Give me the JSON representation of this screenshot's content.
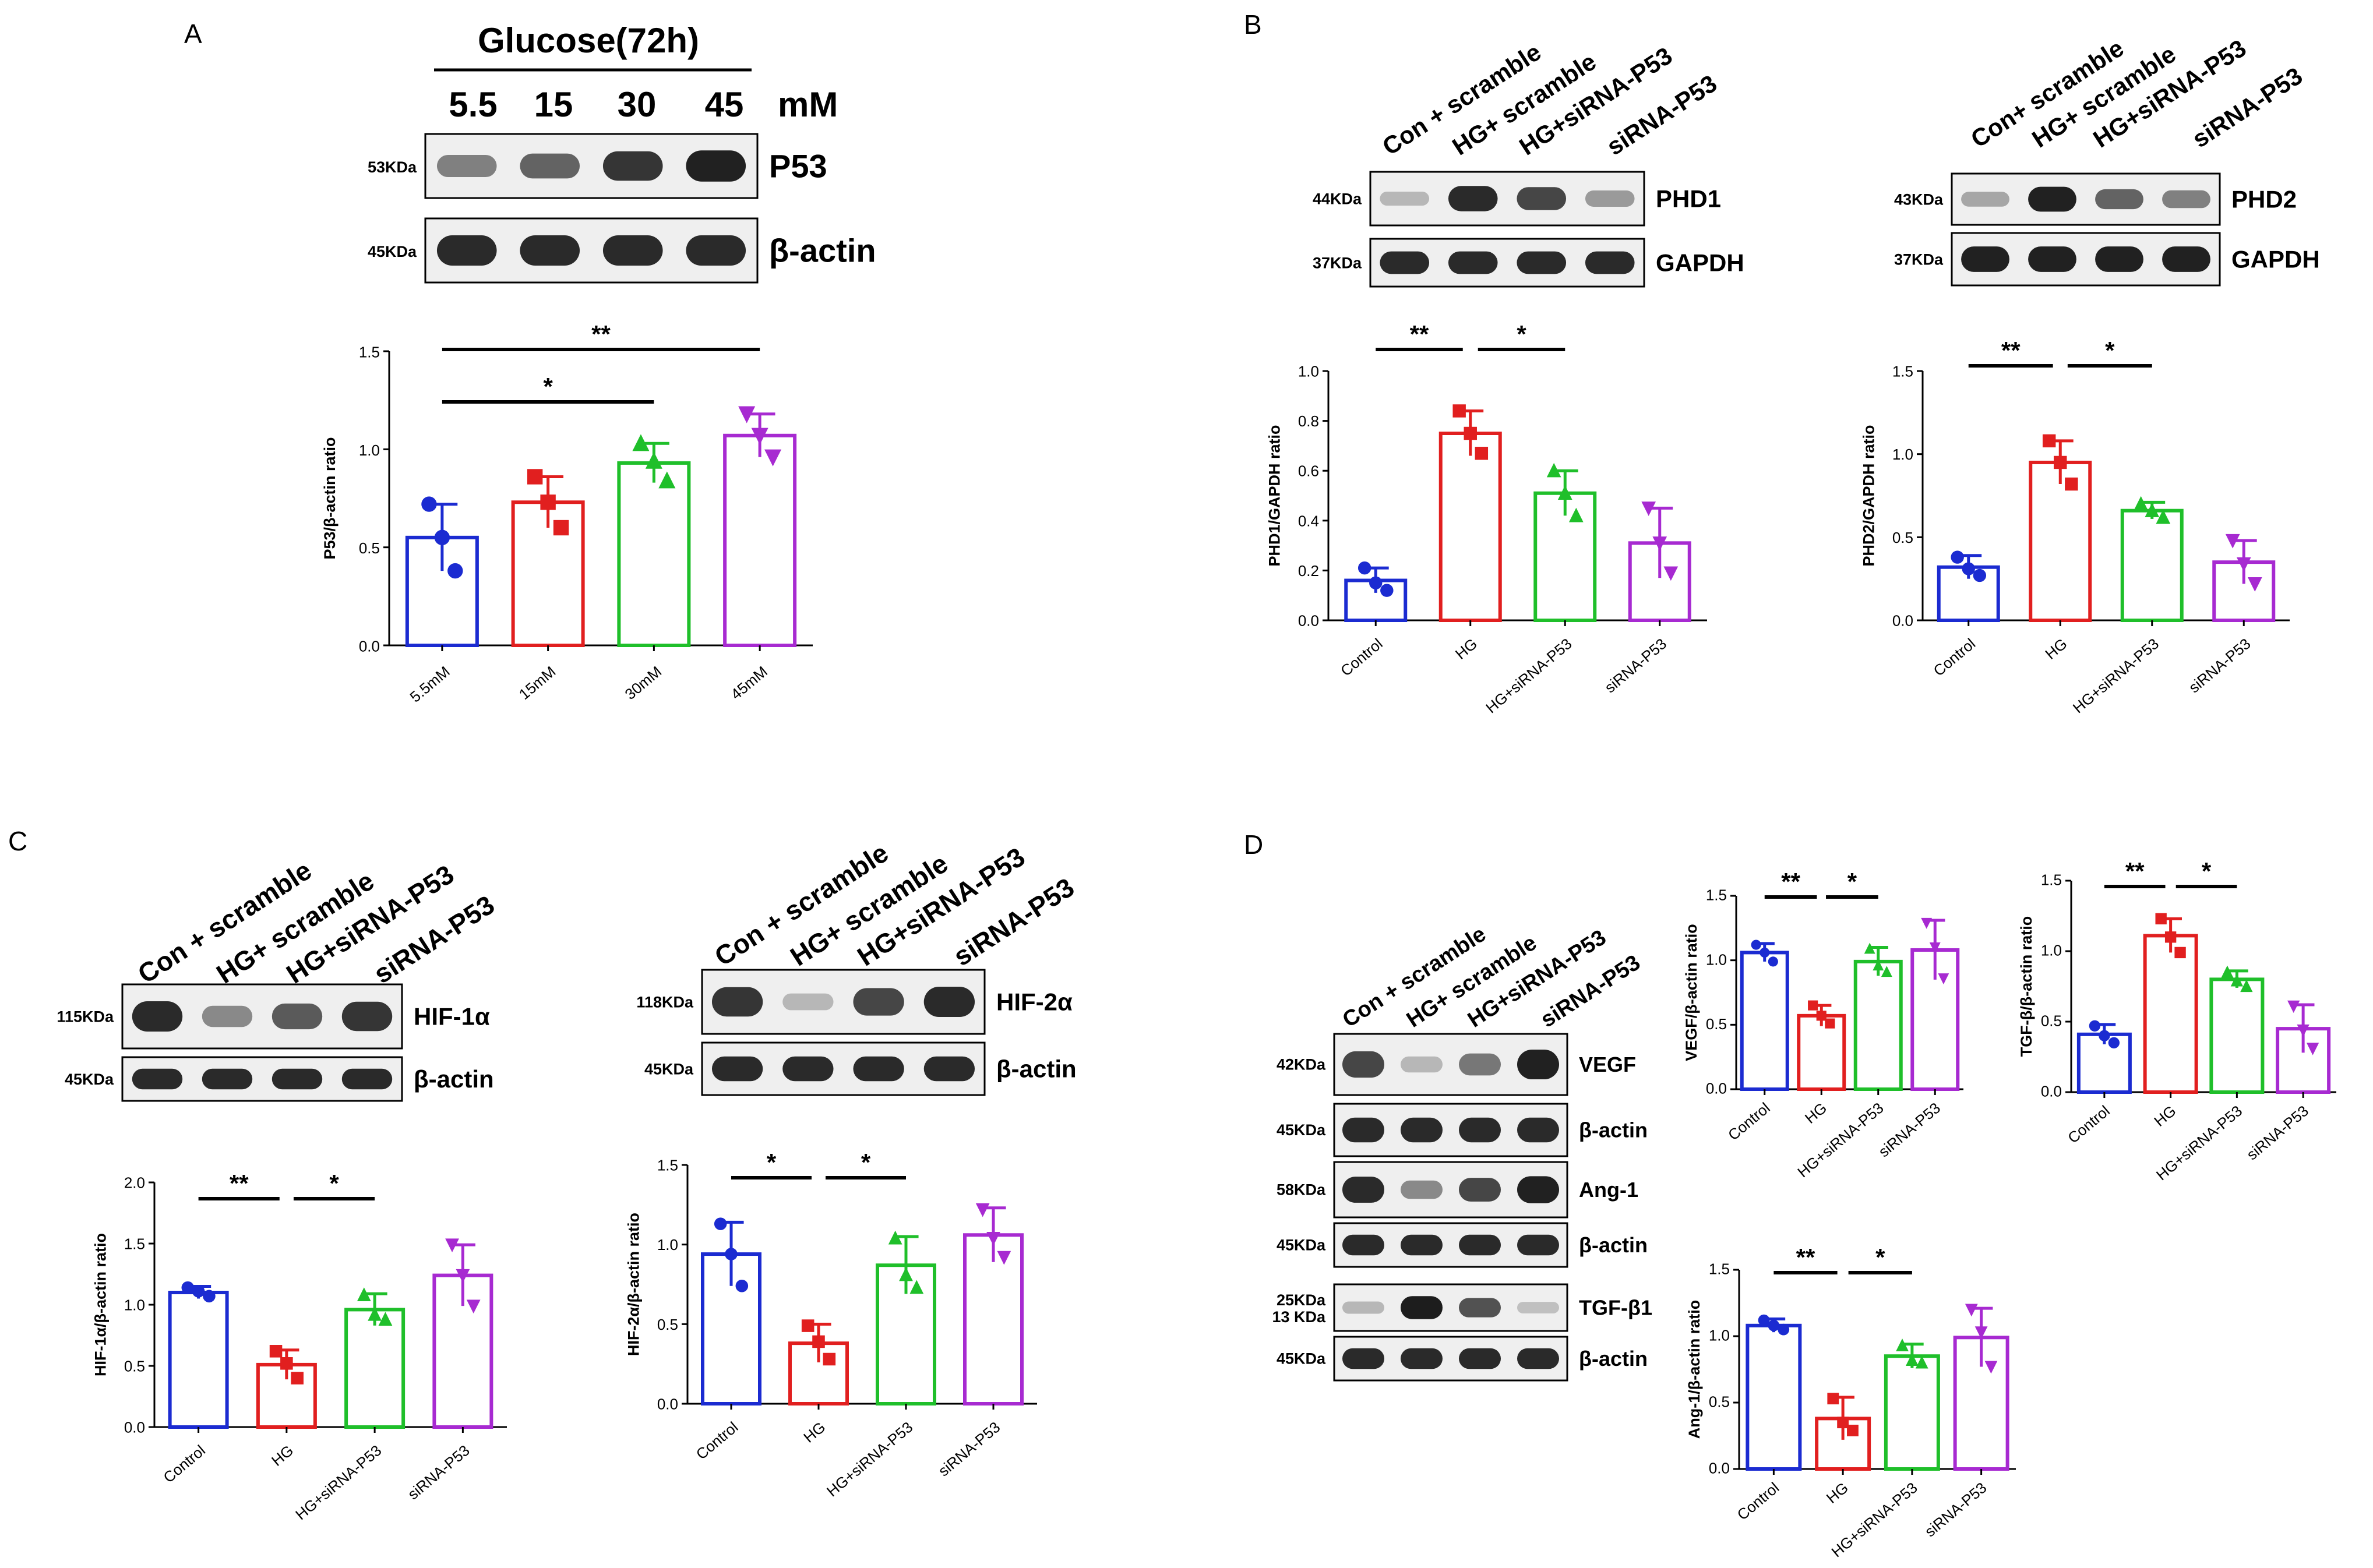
{
  "colors": {
    "Control": "#1b2bd1",
    "HG": "#e11f1f",
    "HG+siRNA-P53": "#1fbf2a",
    "siRNA-P53": "#a72ad1",
    "5.5mM": "#1b2bd1",
    "15mM": "#e11f1f",
    "30mM": "#1fbf2a",
    "45mM": "#a72ad1",
    "ink": "#000000"
  },
  "panels": {
    "A": {
      "letter": "A",
      "treatment": "Glucose(72h)",
      "concentrations": [
        "5.5",
        "15",
        "30",
        "45"
      ],
      "unit": "mM"
    },
    "B": {
      "letter": "B"
    },
    "C": {
      "letter": "C"
    },
    "D": {
      "letter": "D"
    }
  },
  "lanes": {
    "group_labels": [
      "Con + scramble",
      "HG+ scramble",
      "HG+siRNA-P53",
      "siRNA-P53"
    ],
    "B_phd1": [
      "Con + scramble",
      "HG+ scramble",
      "HG+siRNA-P53",
      "siRNA-P53"
    ],
    "B_phd2": [
      "Con+ scramble",
      "HG+ scramble",
      "HG+siRNA-P53",
      "siRNA-P53"
    ],
    "C_hif2": [
      "Con + scramble",
      "HG+ scramble",
      "HG+siRNA-P53",
      "siRNA-P53"
    ],
    "D": [
      "Con + scramble",
      "HG+ scramble",
      "HG+siRNA-P53",
      "siRNA-P53"
    ]
  },
  "blots": {
    "A": [
      {
        "label": "P53",
        "kda": "53KDa",
        "bands": [
          0.45,
          0.6,
          0.85,
          0.95
        ]
      },
      {
        "label": "β-actin",
        "kda": "45KDa",
        "bands": [
          0.9,
          0.9,
          0.9,
          0.9
        ]
      }
    ],
    "B1": [
      {
        "label": "PHD1",
        "kda": "44KDa",
        "bands": [
          0.15,
          0.9,
          0.75,
          0.3
        ]
      },
      {
        "label": "GAPDH",
        "kda": "37KDa",
        "bands": [
          0.9,
          0.9,
          0.9,
          0.9
        ]
      }
    ],
    "B2": [
      {
        "label": "PHD2",
        "kda": "43KDa",
        "bands": [
          0.25,
          0.95,
          0.6,
          0.45
        ]
      },
      {
        "label": "GAPDH",
        "kda": "37KDa",
        "bands": [
          0.95,
          0.95,
          0.95,
          0.95
        ]
      }
    ],
    "C1": [
      {
        "label": "HIF-1α",
        "kda": "115KDa",
        "bands": [
          0.9,
          0.4,
          0.65,
          0.85
        ]
      },
      {
        "label": "β-actin",
        "kda": "45KDa",
        "bands": [
          0.9,
          0.9,
          0.9,
          0.9
        ]
      }
    ],
    "C2": [
      {
        "label": "HIF-2α",
        "kda": "118KDa",
        "bands": [
          0.85,
          0.15,
          0.75,
          0.9
        ]
      },
      {
        "label": "β-actin",
        "kda": "45KDa",
        "bands": [
          0.9,
          0.9,
          0.9,
          0.9
        ]
      }
    ],
    "D": [
      {
        "label": "VEGF",
        "kda": "42KDa",
        "bands": [
          0.75,
          0.15,
          0.5,
          0.95
        ]
      },
      {
        "label": "β-actin",
        "kda": "45KDa",
        "bands": [
          0.9,
          0.9,
          0.9,
          0.9
        ]
      },
      {
        "label": "Ang-1",
        "kda": "58KDa",
        "bands": [
          0.9,
          0.4,
          0.75,
          0.95
        ]
      },
      {
        "label": "β-actin",
        "kda": "45KDa",
        "bands": [
          0.9,
          0.9,
          0.9,
          0.9
        ]
      },
      {
        "label": "TGF-β1",
        "kda": "25KDa",
        "kda2": "13 KDa",
        "bands": [
          0.15,
          0.98,
          0.7,
          0.1
        ]
      },
      {
        "label": "β-actin",
        "kda": "45KDa",
        "bands": [
          0.9,
          0.9,
          0.9,
          0.9
        ]
      }
    ]
  },
  "chart_data": [
    {
      "id": "A",
      "type": "bar",
      "title": "",
      "ylabel": "P53/β-actin ratio",
      "ylim": [
        0,
        1.5
      ],
      "yticks": [
        "0.0",
        "0.5",
        "1.0",
        "1.5"
      ],
      "categories": [
        "5.5mM",
        "15mM",
        "30mM",
        "45mM"
      ],
      "values": [
        0.55,
        0.73,
        0.93,
        1.07
      ],
      "errors": [
        0.17,
        0.13,
        0.1,
        0.11
      ],
      "points": [
        [
          0.72,
          0.55,
          0.38
        ],
        [
          0.86,
          0.73,
          0.6
        ],
        [
          1.03,
          0.94,
          0.84
        ],
        [
          1.18,
          1.07,
          0.96
        ]
      ],
      "markers": [
        "circle",
        "square",
        "triangle",
        "triangle-down"
      ],
      "significance": [
        {
          "from": 0,
          "to": 2,
          "label": "*"
        },
        {
          "from": 0,
          "to": 3,
          "label": "**"
        }
      ]
    },
    {
      "id": "B1",
      "type": "bar",
      "title": "",
      "ylabel": "PHD1/GAPDH ratio",
      "ylim": [
        0,
        1.0
      ],
      "yticks": [
        "0.0",
        "0.2",
        "0.4",
        "0.6",
        "0.8",
        "1.0"
      ],
      "categories": [
        "Control",
        "HG",
        "HG+siRNA-P53",
        "siRNA-P53"
      ],
      "values": [
        0.16,
        0.75,
        0.51,
        0.31
      ],
      "errors": [
        0.05,
        0.09,
        0.09,
        0.14
      ],
      "points": [
        [
          0.21,
          0.15,
          0.12
        ],
        [
          0.84,
          0.75,
          0.67
        ],
        [
          0.6,
          0.51,
          0.42
        ],
        [
          0.45,
          0.31,
          0.19
        ]
      ],
      "markers": [
        "circle",
        "square",
        "triangle",
        "triangle-down"
      ],
      "significance": [
        {
          "from": 0,
          "to": 1,
          "label": "**"
        },
        {
          "from": 1,
          "to": 2,
          "label": "*"
        }
      ]
    },
    {
      "id": "B2",
      "type": "bar",
      "title": "",
      "ylabel": "PHD2/GAPDH ratio",
      "ylim": [
        0,
        1.5
      ],
      "yticks": [
        "0.0",
        "0.5",
        "1.0",
        "1.5"
      ],
      "categories": [
        "Control",
        "HG",
        "HG+siRNA-P53",
        "siRNA-P53"
      ],
      "values": [
        0.32,
        0.95,
        0.66,
        0.35
      ],
      "errors": [
        0.07,
        0.13,
        0.05,
        0.13
      ],
      "points": [
        [
          0.38,
          0.31,
          0.27
        ],
        [
          1.08,
          0.95,
          0.82
        ],
        [
          0.7,
          0.66,
          0.62
        ],
        [
          0.48,
          0.34,
          0.22
        ]
      ],
      "markers": [
        "circle",
        "square",
        "triangle",
        "triangle-down"
      ],
      "significance": [
        {
          "from": 0,
          "to": 1,
          "label": "**"
        },
        {
          "from": 1,
          "to": 2,
          "label": "*"
        }
      ]
    },
    {
      "id": "C1",
      "type": "bar",
      "title": "",
      "ylabel": "HIF-1α/β-actin ratio",
      "ylim": [
        0,
        2.0
      ],
      "yticks": [
        "0.0",
        "0.5",
        "1.0",
        "1.5",
        "2.0"
      ],
      "categories": [
        "Control",
        "HG",
        "HG+siRNA-P53",
        "siRNA-P53"
      ],
      "values": [
        1.1,
        0.51,
        0.96,
        1.24
      ],
      "errors": [
        0.05,
        0.12,
        0.13,
        0.25
      ],
      "points": [
        [
          1.14,
          1.11,
          1.07
        ],
        [
          0.62,
          0.52,
          0.4
        ],
        [
          1.08,
          0.92,
          0.88
        ],
        [
          1.49,
          1.24,
          0.99
        ]
      ],
      "markers": [
        "circle",
        "square",
        "triangle",
        "triangle-down"
      ],
      "significance": [
        {
          "from": 0,
          "to": 1,
          "label": "**"
        },
        {
          "from": 1,
          "to": 2,
          "label": "*"
        }
      ]
    },
    {
      "id": "C2",
      "type": "bar",
      "title": "",
      "ylabel": "HIF-2α/β-actin ratio",
      "ylim": [
        0,
        1.5
      ],
      "yticks": [
        "0.0",
        "0.5",
        "1.0",
        "1.5"
      ],
      "categories": [
        "Control",
        "HG",
        "HG+siRNA-P53",
        "siRNA-P53"
      ],
      "values": [
        0.94,
        0.38,
        0.87,
        1.06
      ],
      "errors": [
        0.2,
        0.12,
        0.18,
        0.17
      ],
      "points": [
        [
          1.13,
          0.94,
          0.74
        ],
        [
          0.49,
          0.39,
          0.28
        ],
        [
          1.04,
          0.81,
          0.73
        ],
        [
          1.22,
          1.04,
          0.92
        ]
      ],
      "markers": [
        "circle",
        "square",
        "triangle",
        "triangle-down"
      ],
      "significance": [
        {
          "from": 0,
          "to": 1,
          "label": "*"
        },
        {
          "from": 1,
          "to": 2,
          "label": "*"
        }
      ]
    },
    {
      "id": "D_vegf",
      "type": "bar",
      "title": "",
      "ylabel": "VEGF/β-actin ratio",
      "ylim": [
        0,
        1.5
      ],
      "yticks": [
        "0.0",
        "0.5",
        "1.0",
        "1.5"
      ],
      "categories": [
        "Control",
        "HG",
        "HG+siRNA-P53",
        "siRNA-P53"
      ],
      "values": [
        1.06,
        0.57,
        0.99,
        1.08
      ],
      "errors": [
        0.07,
        0.08,
        0.11,
        0.23
      ],
      "points": [
        [
          1.12,
          1.06,
          0.99
        ],
        [
          0.65,
          0.57,
          0.51
        ],
        [
          1.09,
          0.96,
          0.91
        ],
        [
          1.29,
          1.1,
          0.86
        ]
      ],
      "markers": [
        "circle",
        "square",
        "triangle",
        "triangle-down"
      ],
      "significance": [
        {
          "from": 0,
          "to": 1,
          "label": "**"
        },
        {
          "from": 1,
          "to": 2,
          "label": "*"
        }
      ]
    },
    {
      "id": "D_tgf",
      "type": "bar",
      "title": "",
      "ylabel": "TGF-β/β-actin ratio",
      "ylim": [
        0,
        1.5
      ],
      "yticks": [
        "0.0",
        "0.5",
        "1.0",
        "1.5"
      ],
      "categories": [
        "Control",
        "HG",
        "HG+siRNA-P53",
        "siRNA-P53"
      ],
      "values": [
        0.41,
        1.11,
        0.8,
        0.45
      ],
      "errors": [
        0.07,
        0.12,
        0.06,
        0.17
      ],
      "points": [
        [
          0.47,
          0.4,
          0.35
        ],
        [
          1.23,
          1.1,
          0.99
        ],
        [
          0.85,
          0.79,
          0.75
        ],
        [
          0.61,
          0.44,
          0.31
        ]
      ],
      "markers": [
        "circle",
        "square",
        "triangle",
        "triangle-down"
      ],
      "significance": [
        {
          "from": 0,
          "to": 1,
          "label": "**"
        },
        {
          "from": 1,
          "to": 2,
          "label": "*"
        }
      ]
    },
    {
      "id": "D_ang",
      "type": "bar",
      "title": "",
      "ylabel": "Ang-1/β-actin ratio",
      "ylim": [
        0,
        1.5
      ],
      "yticks": [
        "0.0",
        "0.5",
        "1.0",
        "1.5"
      ],
      "categories": [
        "Control",
        "HG",
        "HG+siRNA-P53",
        "siRNA-P53"
      ],
      "values": [
        1.08,
        0.38,
        0.85,
        0.99
      ],
      "errors": [
        0.05,
        0.16,
        0.09,
        0.22
      ],
      "points": [
        [
          1.12,
          1.08,
          1.05
        ],
        [
          0.53,
          0.35,
          0.29
        ],
        [
          0.93,
          0.82,
          0.8
        ],
        [
          1.2,
          1.03,
          0.77
        ]
      ],
      "markers": [
        "circle",
        "square",
        "triangle",
        "triangle-down"
      ],
      "significance": [
        {
          "from": 0,
          "to": 1,
          "label": "**"
        },
        {
          "from": 1,
          "to": 2,
          "label": "*"
        }
      ]
    }
  ]
}
